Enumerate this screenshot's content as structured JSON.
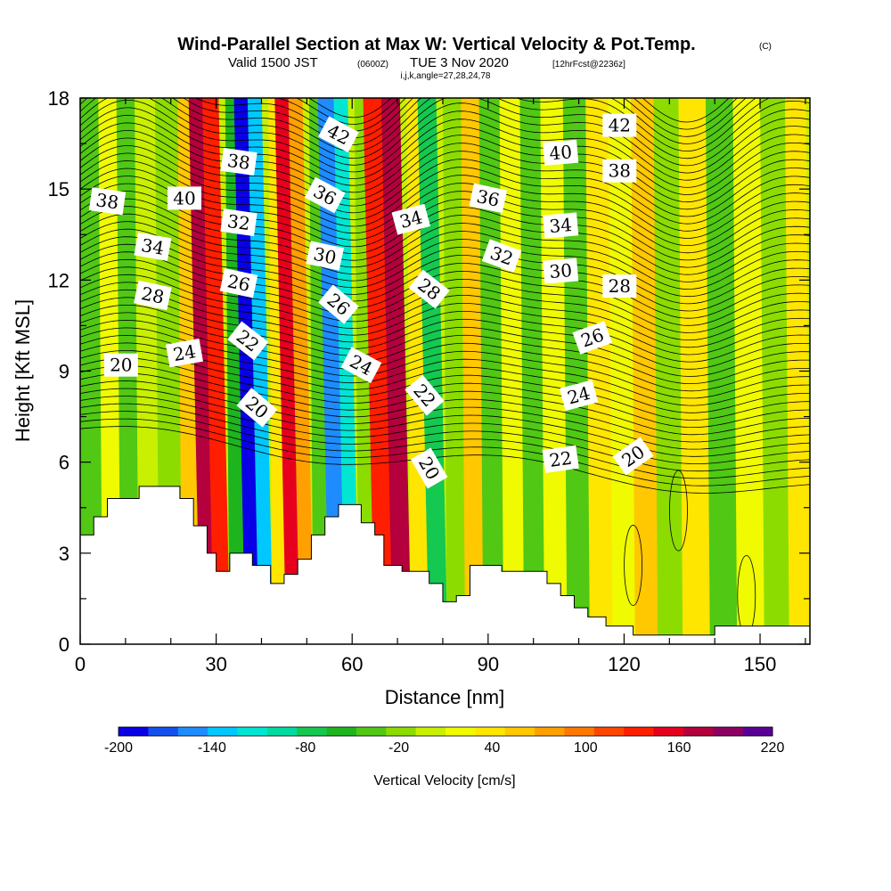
{
  "chart_data": {
    "type": "heatmap",
    "title": "Wind-Parallel Section at Max W: Vertical Velocity & Pot.Temp.",
    "title_mark": "(C)",
    "subtitle": {
      "valid": "Valid 1500 JST",
      "utc": "(0600Z)",
      "date": "TUE 3 Nov 2020",
      "forecast": "[12hrFcst@2236z]",
      "indices": "i,j,k,angle=27,28,24,78"
    },
    "xlabel": "Distance [nm]",
    "ylabel": "Height [Kft MSL]",
    "xlim": [
      0,
      161
    ],
    "ylim": [
      0,
      18
    ],
    "x_ticks": [
      0,
      30,
      60,
      90,
      120,
      150
    ],
    "y_ticks": [
      0,
      3,
      6,
      9,
      12,
      15,
      18
    ],
    "colorbar": {
      "label": "Vertical Velocity [cm/s]",
      "tick_labels": [
        "-200",
        "-140",
        "-80",
        "-20",
        "40",
        "100",
        "160",
        "220"
      ],
      "min": -200,
      "max": 220,
      "colors": [
        "#0a00e6",
        "#1450f0",
        "#1e8cff",
        "#00c8ff",
        "#00e6d2",
        "#00dca0",
        "#14c850",
        "#1eb41e",
        "#50c814",
        "#8cdc00",
        "#c8f000",
        "#f0fa00",
        "#ffe600",
        "#ffc800",
        "#ffa000",
        "#ff7800",
        "#ff4600",
        "#ff1e00",
        "#e6001e",
        "#b4003c",
        "#8c0064",
        "#5a0096"
      ]
    },
    "wind_velocity_bands": [
      {
        "x": 3,
        "w": -30
      },
      {
        "x": 7,
        "w": 10
      },
      {
        "x": 11,
        "w": -40
      },
      {
        "x": 15,
        "w": 0
      },
      {
        "x": 20,
        "w": -20
      },
      {
        "x": 25,
        "w": 60
      },
      {
        "x": 28,
        "w": 170
      },
      {
        "x": 31,
        "w": 130
      },
      {
        "x": 35,
        "w": -50
      },
      {
        "x": 38,
        "w": -200
      },
      {
        "x": 41,
        "w": -130
      },
      {
        "x": 44,
        "w": 40
      },
      {
        "x": 47,
        "w": 150
      },
      {
        "x": 50,
        "w": 80
      },
      {
        "x": 53,
        "w": -40
      },
      {
        "x": 57,
        "w": -160
      },
      {
        "x": 60,
        "w": -120
      },
      {
        "x": 63,
        "w": -20
      },
      {
        "x": 67,
        "w": 130
      },
      {
        "x": 71,
        "w": 170
      },
      {
        "x": 75,
        "w": 40
      },
      {
        "x": 79,
        "w": -70
      },
      {
        "x": 83,
        "w": -10
      },
      {
        "x": 87,
        "w": 50
      },
      {
        "x": 91,
        "w": -30
      },
      {
        "x": 96,
        "w": 20
      },
      {
        "x": 100,
        "w": -40
      },
      {
        "x": 105,
        "w": 10
      },
      {
        "x": 110,
        "w": -30
      },
      {
        "x": 115,
        "w": 40
      },
      {
        "x": 120,
        "w": 20
      },
      {
        "x": 125,
        "w": 50
      },
      {
        "x": 130,
        "w": -10
      },
      {
        "x": 136,
        "w": 30
      },
      {
        "x": 142,
        "w": -30
      },
      {
        "x": 148,
        "w": 20
      },
      {
        "x": 154,
        "w": -20
      },
      {
        "x": 159,
        "w": 30
      }
    ],
    "terrain": [
      [
        0,
        3.6
      ],
      [
        3,
        4.2
      ],
      [
        6,
        4.8
      ],
      [
        13,
        5.2
      ],
      [
        22,
        4.8
      ],
      [
        25,
        3.9
      ],
      [
        28,
        3.0
      ],
      [
        30,
        2.4
      ],
      [
        33,
        3.0
      ],
      [
        38,
        2.6
      ],
      [
        42,
        2.0
      ],
      [
        45,
        2.3
      ],
      [
        48,
        2.8
      ],
      [
        51,
        3.6
      ],
      [
        54,
        4.2
      ],
      [
        57,
        4.6
      ],
      [
        62,
        4.0
      ],
      [
        65,
        3.6
      ],
      [
        67,
        2.6
      ],
      [
        71,
        2.4
      ],
      [
        77,
        2.0
      ],
      [
        80,
        1.4
      ],
      [
        83,
        1.6
      ],
      [
        86,
        2.6
      ],
      [
        93,
        2.4
      ],
      [
        103,
        2.0
      ],
      [
        106,
        1.6
      ],
      [
        109,
        1.2
      ],
      [
        112,
        0.9
      ],
      [
        116,
        0.6
      ],
      [
        122,
        0.3
      ],
      [
        140,
        0.6
      ],
      [
        161,
        0.6
      ]
    ],
    "theta_contours": [
      20,
      22,
      24,
      26,
      28,
      30,
      32,
      34,
      36,
      38,
      40,
      42
    ],
    "contour_labels": [
      {
        "text": "38",
        "x": 6,
        "y": 14.6,
        "rot": 8
      },
      {
        "text": "40",
        "x": 23,
        "y": 14.7,
        "rot": 0
      },
      {
        "text": "34",
        "x": 16,
        "y": 13.1,
        "rot": 10
      },
      {
        "text": "28",
        "x": 16,
        "y": 11.5,
        "rot": 12
      },
      {
        "text": "24",
        "x": 23,
        "y": 9.6,
        "rot": -10
      },
      {
        "text": "20",
        "x": 9,
        "y": 9.2,
        "rot": 0
      },
      {
        "text": "38",
        "x": 35,
        "y": 15.9,
        "rot": 8
      },
      {
        "text": "32",
        "x": 35,
        "y": 13.9,
        "rot": 8
      },
      {
        "text": "26",
        "x": 35,
        "y": 11.9,
        "rot": 12
      },
      {
        "text": "22",
        "x": 37,
        "y": 10.0,
        "rot": 38
      },
      {
        "text": "20",
        "x": 39,
        "y": 7.8,
        "rot": 40
      },
      {
        "text": "42",
        "x": 57,
        "y": 16.8,
        "rot": 28
      },
      {
        "text": "36",
        "x": 54,
        "y": 14.8,
        "rot": 28
      },
      {
        "text": "30",
        "x": 54,
        "y": 12.8,
        "rot": 12
      },
      {
        "text": "26",
        "x": 57,
        "y": 11.2,
        "rot": 40
      },
      {
        "text": "24",
        "x": 62,
        "y": 9.2,
        "rot": 28
      },
      {
        "text": "34",
        "x": 73,
        "y": 14.0,
        "rot": -15
      },
      {
        "text": "28",
        "x": 77,
        "y": 11.7,
        "rot": 38
      },
      {
        "text": "22",
        "x": 76,
        "y": 8.2,
        "rot": 50
      },
      {
        "text": "20",
        "x": 77,
        "y": 5.8,
        "rot": 60
      },
      {
        "text": "36",
        "x": 90,
        "y": 14.7,
        "rot": 12
      },
      {
        "text": "32",
        "x": 93,
        "y": 12.8,
        "rot": 20
      },
      {
        "text": "40",
        "x": 106,
        "y": 16.2,
        "rot": -5
      },
      {
        "text": "34",
        "x": 106,
        "y": 13.8,
        "rot": -5
      },
      {
        "text": "30",
        "x": 106,
        "y": 12.3,
        "rot": -5
      },
      {
        "text": "22",
        "x": 106,
        "y": 6.1,
        "rot": -8
      },
      {
        "text": "24",
        "x": 110,
        "y": 8.2,
        "rot": -15
      },
      {
        "text": "26",
        "x": 113,
        "y": 10.1,
        "rot": -20
      },
      {
        "text": "42",
        "x": 119,
        "y": 17.1,
        "rot": 0
      },
      {
        "text": "38",
        "x": 119,
        "y": 15.6,
        "rot": 0
      },
      {
        "text": "28",
        "x": 119,
        "y": 11.8,
        "rot": 0
      },
      {
        "text": "20",
        "x": 122,
        "y": 6.2,
        "rot": -35
      }
    ]
  }
}
